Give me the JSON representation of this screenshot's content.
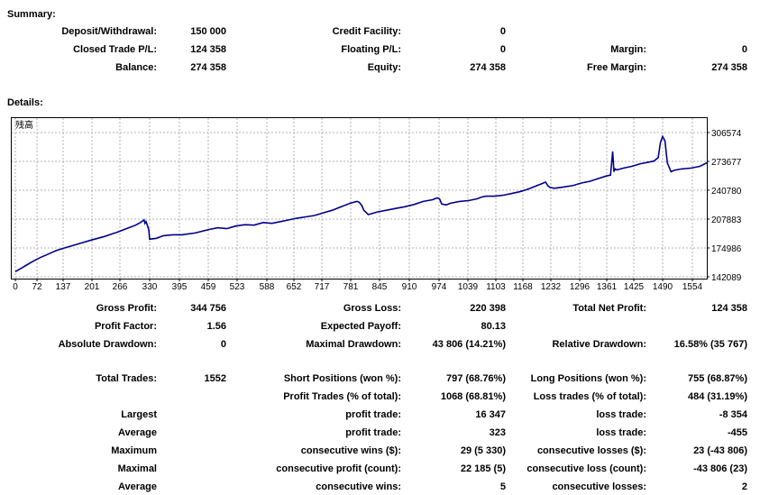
{
  "summary": {
    "title": "Summary:",
    "rows": [
      [
        {
          "label": "Deposit/Withdrawal:",
          "value": "150 000"
        },
        {
          "label": "Credit Facility:",
          "value": "0"
        },
        {
          "label": "",
          "value": ""
        }
      ],
      [
        {
          "label": "Closed Trade P/L:",
          "value": "124 358"
        },
        {
          "label": "Floating P/L:",
          "value": "0"
        },
        {
          "label": "Margin:",
          "value": "0"
        }
      ],
      [
        {
          "label": "Balance:",
          "value": "274 358"
        },
        {
          "label": "Equity:",
          "value": "274 358"
        },
        {
          "label": "Free Margin:",
          "value": "274 358"
        }
      ]
    ]
  },
  "details": {
    "title": "Details:"
  },
  "chart_data": {
    "type": "line",
    "title": "",
    "legend_label": "残高",
    "xlabel": "",
    "ylabel": "",
    "x_ticks": [
      "0",
      "72",
      "137",
      "201",
      "266",
      "330",
      "395",
      "459",
      "523",
      "588",
      "652",
      "717",
      "781",
      "845",
      "910",
      "974",
      "1039",
      "1103",
      "1168",
      "1232",
      "1296",
      "1361",
      "1425",
      "1490",
      "1554"
    ],
    "y_ticks": [
      "306574",
      "273677",
      "240780",
      "207883",
      "174986",
      "142089"
    ],
    "xlim": [
      0,
      1600
    ],
    "ylim": [
      142089,
      306574
    ],
    "grid": true,
    "line_color": "#00008b",
    "series": [
      {
        "x": [
          0,
          20,
          40,
          60,
          80,
          100,
          120,
          140,
          160,
          180,
          200,
          230,
          260,
          280,
          300,
          310,
          318,
          320,
          322,
          325,
          328,
          330,
          345,
          360,
          380,
          400,
          430,
          460,
          480,
          500,
          520,
          540,
          560,
          580,
          600,
          620,
          640,
          660,
          680,
          700,
          720,
          740,
          760,
          780,
          795,
          800,
          806,
          810,
          820,
          840,
          860,
          880,
          900,
          920,
          940,
          960,
          970,
          975,
          980,
          990,
          1000,
          1020,
          1040,
          1060,
          1070,
          1080,
          1100,
          1120,
          1140,
          1160,
          1180,
          1200,
          1210,
          1220,
          1225,
          1230,
          1240,
          1260,
          1280,
          1300,
          1320,
          1340,
          1360,
          1370,
          1375,
          1378,
          1381,
          1385,
          1400,
          1420,
          1440,
          1460,
          1470,
          1480,
          1485,
          1490,
          1495,
          1500,
          1508,
          1515,
          1530,
          1550,
          1570,
          1585,
          1600
        ],
        "y": [
          148000,
          152000,
          156000,
          160000,
          164000,
          168000,
          172000,
          175000,
          178000,
          181000,
          184000,
          188000,
          193000,
          197000,
          201000,
          204000,
          207000,
          203000,
          205000,
          201000,
          196000,
          185000,
          186000,
          189000,
          190000,
          190000,
          192000,
          196000,
          198000,
          197000,
          200000,
          201500,
          201000,
          204000,
          203000,
          205000,
          207000,
          209000,
          210500,
          212000,
          215000,
          218000,
          222000,
          226000,
          228000,
          227000,
          223000,
          218000,
          213000,
          216000,
          218000,
          220000,
          222000,
          224500,
          228000,
          230000,
          232000,
          231000,
          225000,
          224000,
          226000,
          228000,
          229000,
          231000,
          233000,
          234000,
          234000,
          235000,
          237000,
          239000,
          242000,
          246000,
          248000,
          250000,
          246000,
          244000,
          243000,
          244500,
          246000,
          249000,
          251000,
          254000,
          257000,
          258000,
          285000,
          262000,
          265000,
          264000,
          266000,
          268000,
          271000,
          273000,
          274000,
          278000,
          295000,
          302000,
          297000,
          272000,
          262000,
          263500,
          265000,
          266000,
          268000,
          272000,
          271000
        ]
      }
    ]
  },
  "stats": {
    "row1": [
      {
        "label": "Gross Profit:",
        "value": "344 756"
      },
      {
        "label": "Gross Loss:",
        "value": "220 398"
      },
      {
        "label": "Total Net Profit:",
        "value": "124 358"
      }
    ],
    "row2": [
      {
        "label": "Profit Factor:",
        "value": "1.56"
      },
      {
        "label": "Expected Payoff:",
        "value": "80.13"
      },
      {
        "label": "",
        "value": ""
      }
    ],
    "row3": [
      {
        "label": "Absolute Drawdown:",
        "value": "0"
      },
      {
        "label": "Maximal Drawdown:",
        "value": "43 806 (14.21%)"
      },
      {
        "label": "Relative Drawdown:",
        "value": "16.58% (35 767)"
      }
    ],
    "trades": [
      [
        {
          "label": "Total Trades:",
          "value": "1552"
        },
        {
          "label": "Short Positions (won %):",
          "value": "797 (68.76%)"
        },
        {
          "label": "Long Positions (won %):",
          "value": "755 (68.87%)"
        }
      ],
      [
        {
          "label": "",
          "value": ""
        },
        {
          "label": "Profit Trades (% of total):",
          "value": "1068 (68.81%)"
        },
        {
          "label": "Loss trades (% of total):",
          "value": "484 (31.19%)"
        }
      ],
      [
        {
          "label": "Largest",
          "value": ""
        },
        {
          "label": "profit trade:",
          "value": "16 347"
        },
        {
          "label": "loss trade:",
          "value": "-8 354"
        }
      ],
      [
        {
          "label": "Average",
          "value": ""
        },
        {
          "label": "profit trade:",
          "value": "323"
        },
        {
          "label": "loss trade:",
          "value": "-455"
        }
      ],
      [
        {
          "label": "Maximum",
          "value": ""
        },
        {
          "label": "consecutive wins ($):",
          "value": "29 (5 330)"
        },
        {
          "label": "consecutive losses ($):",
          "value": "23 (-43 806)"
        }
      ],
      [
        {
          "label": "Maximal",
          "value": ""
        },
        {
          "label": "consecutive profit (count):",
          "value": "22 185 (5)"
        },
        {
          "label": "consecutive loss (count):",
          "value": "-43 806 (23)"
        }
      ],
      [
        {
          "label": "Average",
          "value": ""
        },
        {
          "label": "consecutive wins:",
          "value": "5"
        },
        {
          "label": "consecutive losses:",
          "value": "2"
        }
      ]
    ]
  }
}
